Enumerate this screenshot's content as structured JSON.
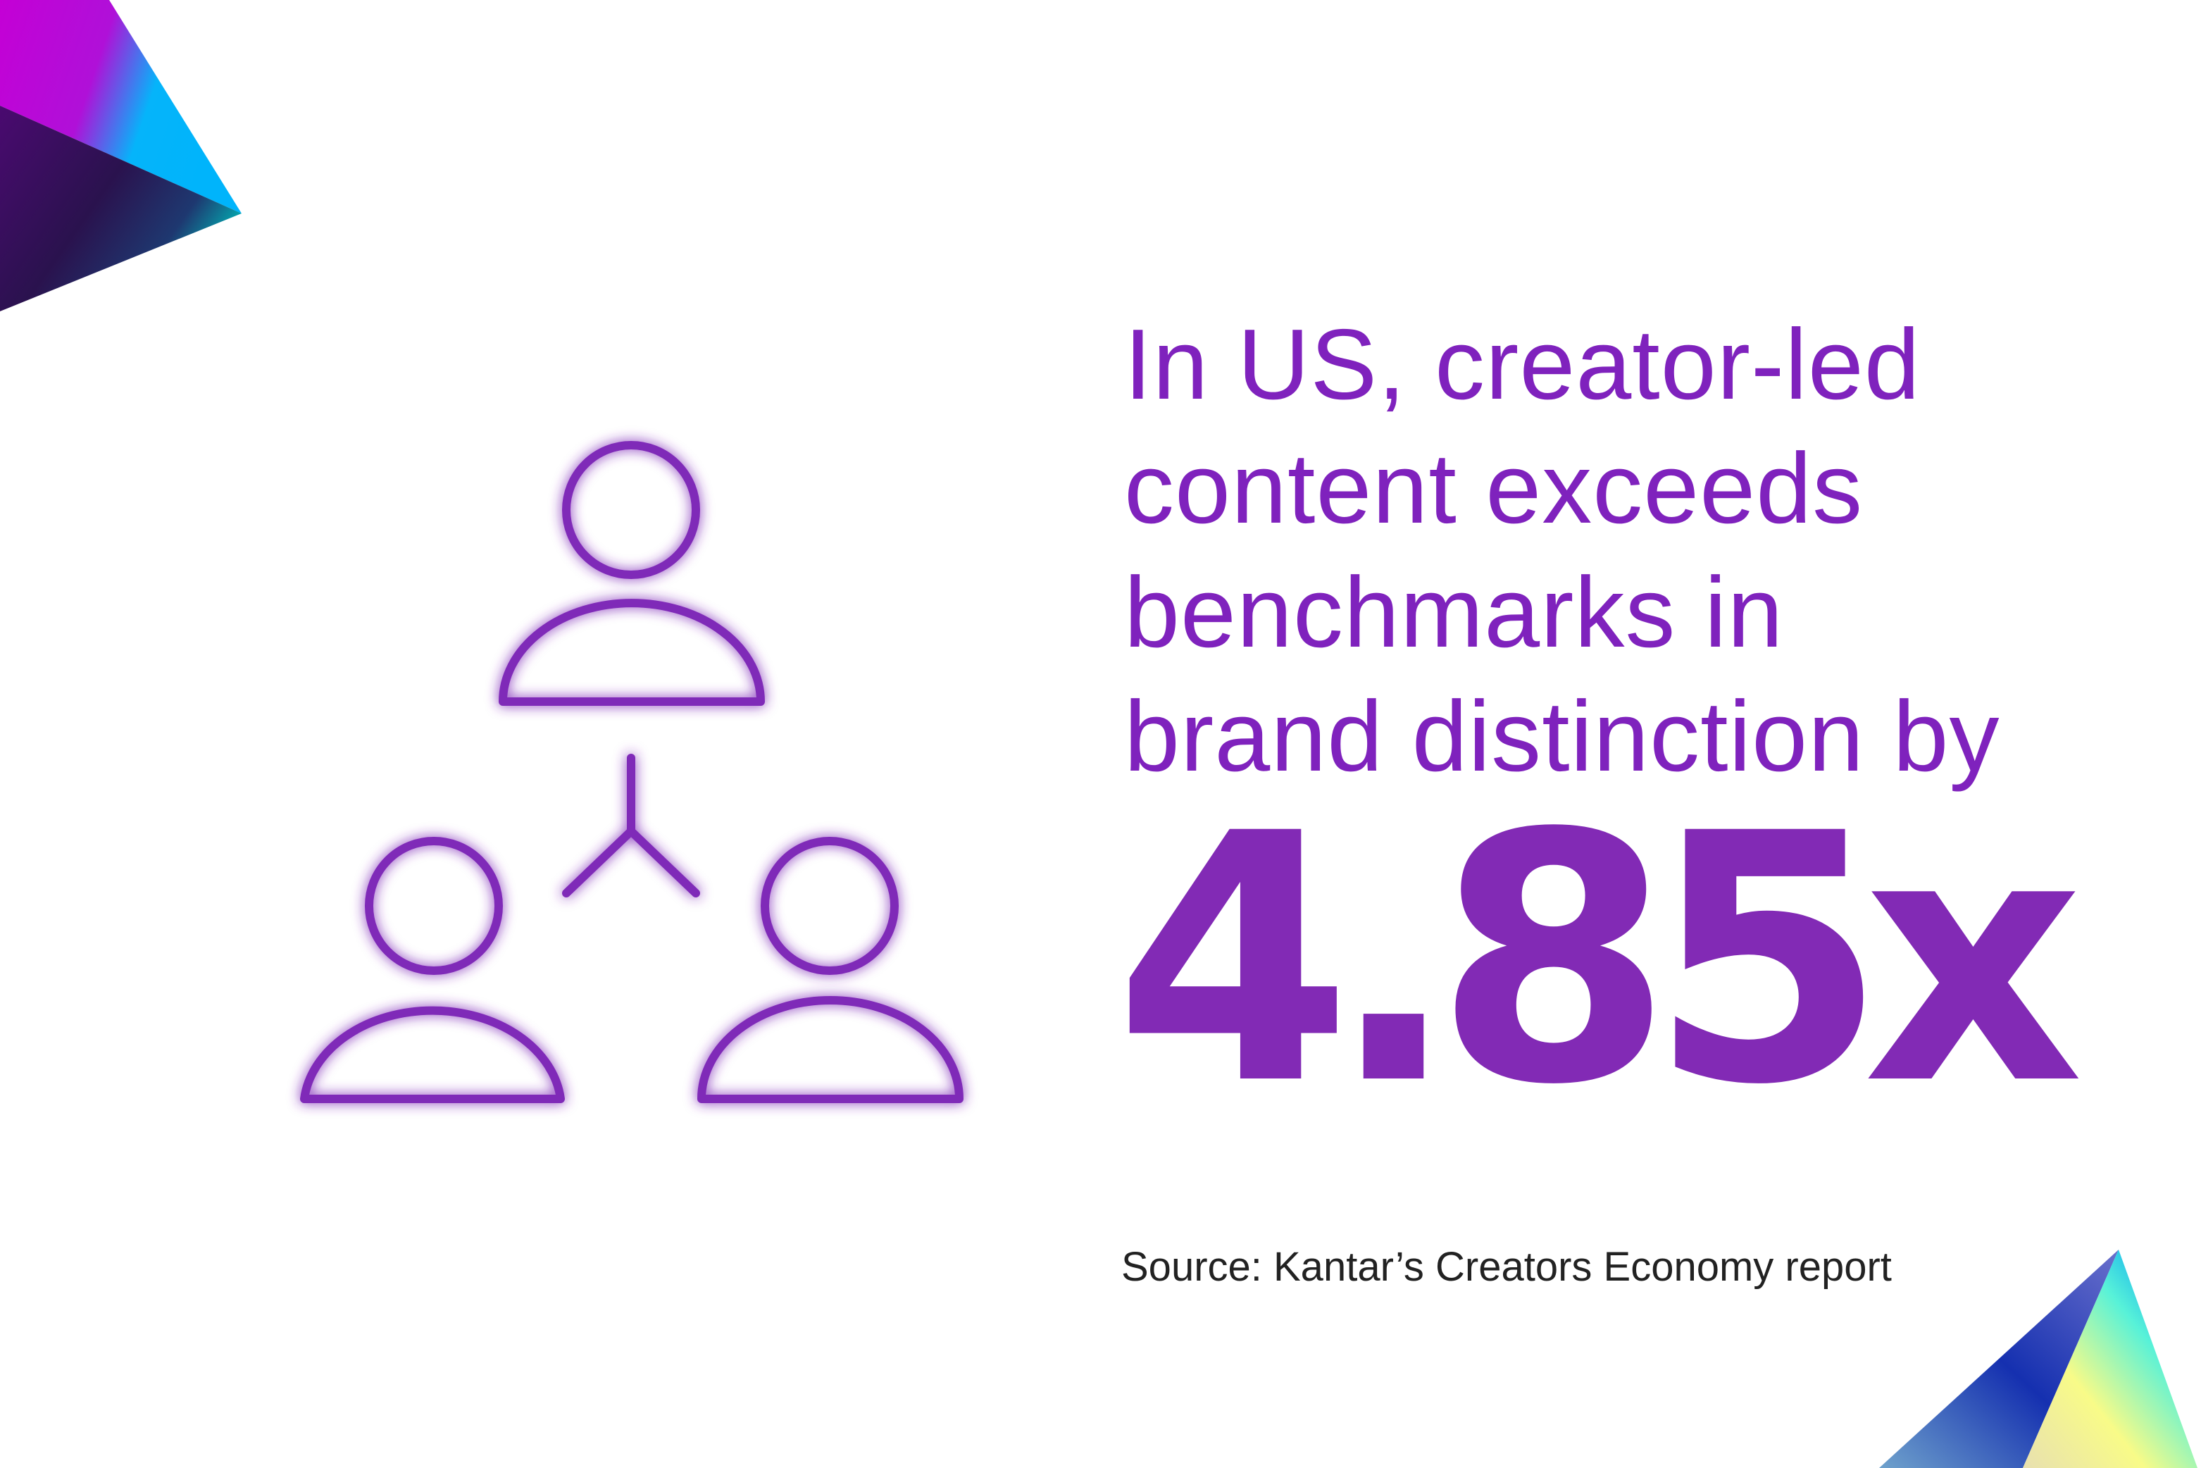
{
  "headline": {
    "lines": [
      "In US, creator-led",
      "content exceeds",
      "benchmarks in",
      "brand distinction by"
    ]
  },
  "stat": {
    "value": "4.85x"
  },
  "source": "Source: Kantar’s Creators Economy report",
  "colors": {
    "accent": "#822ab5",
    "text": "#222222"
  },
  "illustration": {
    "icon": "people-network-icon"
  }
}
